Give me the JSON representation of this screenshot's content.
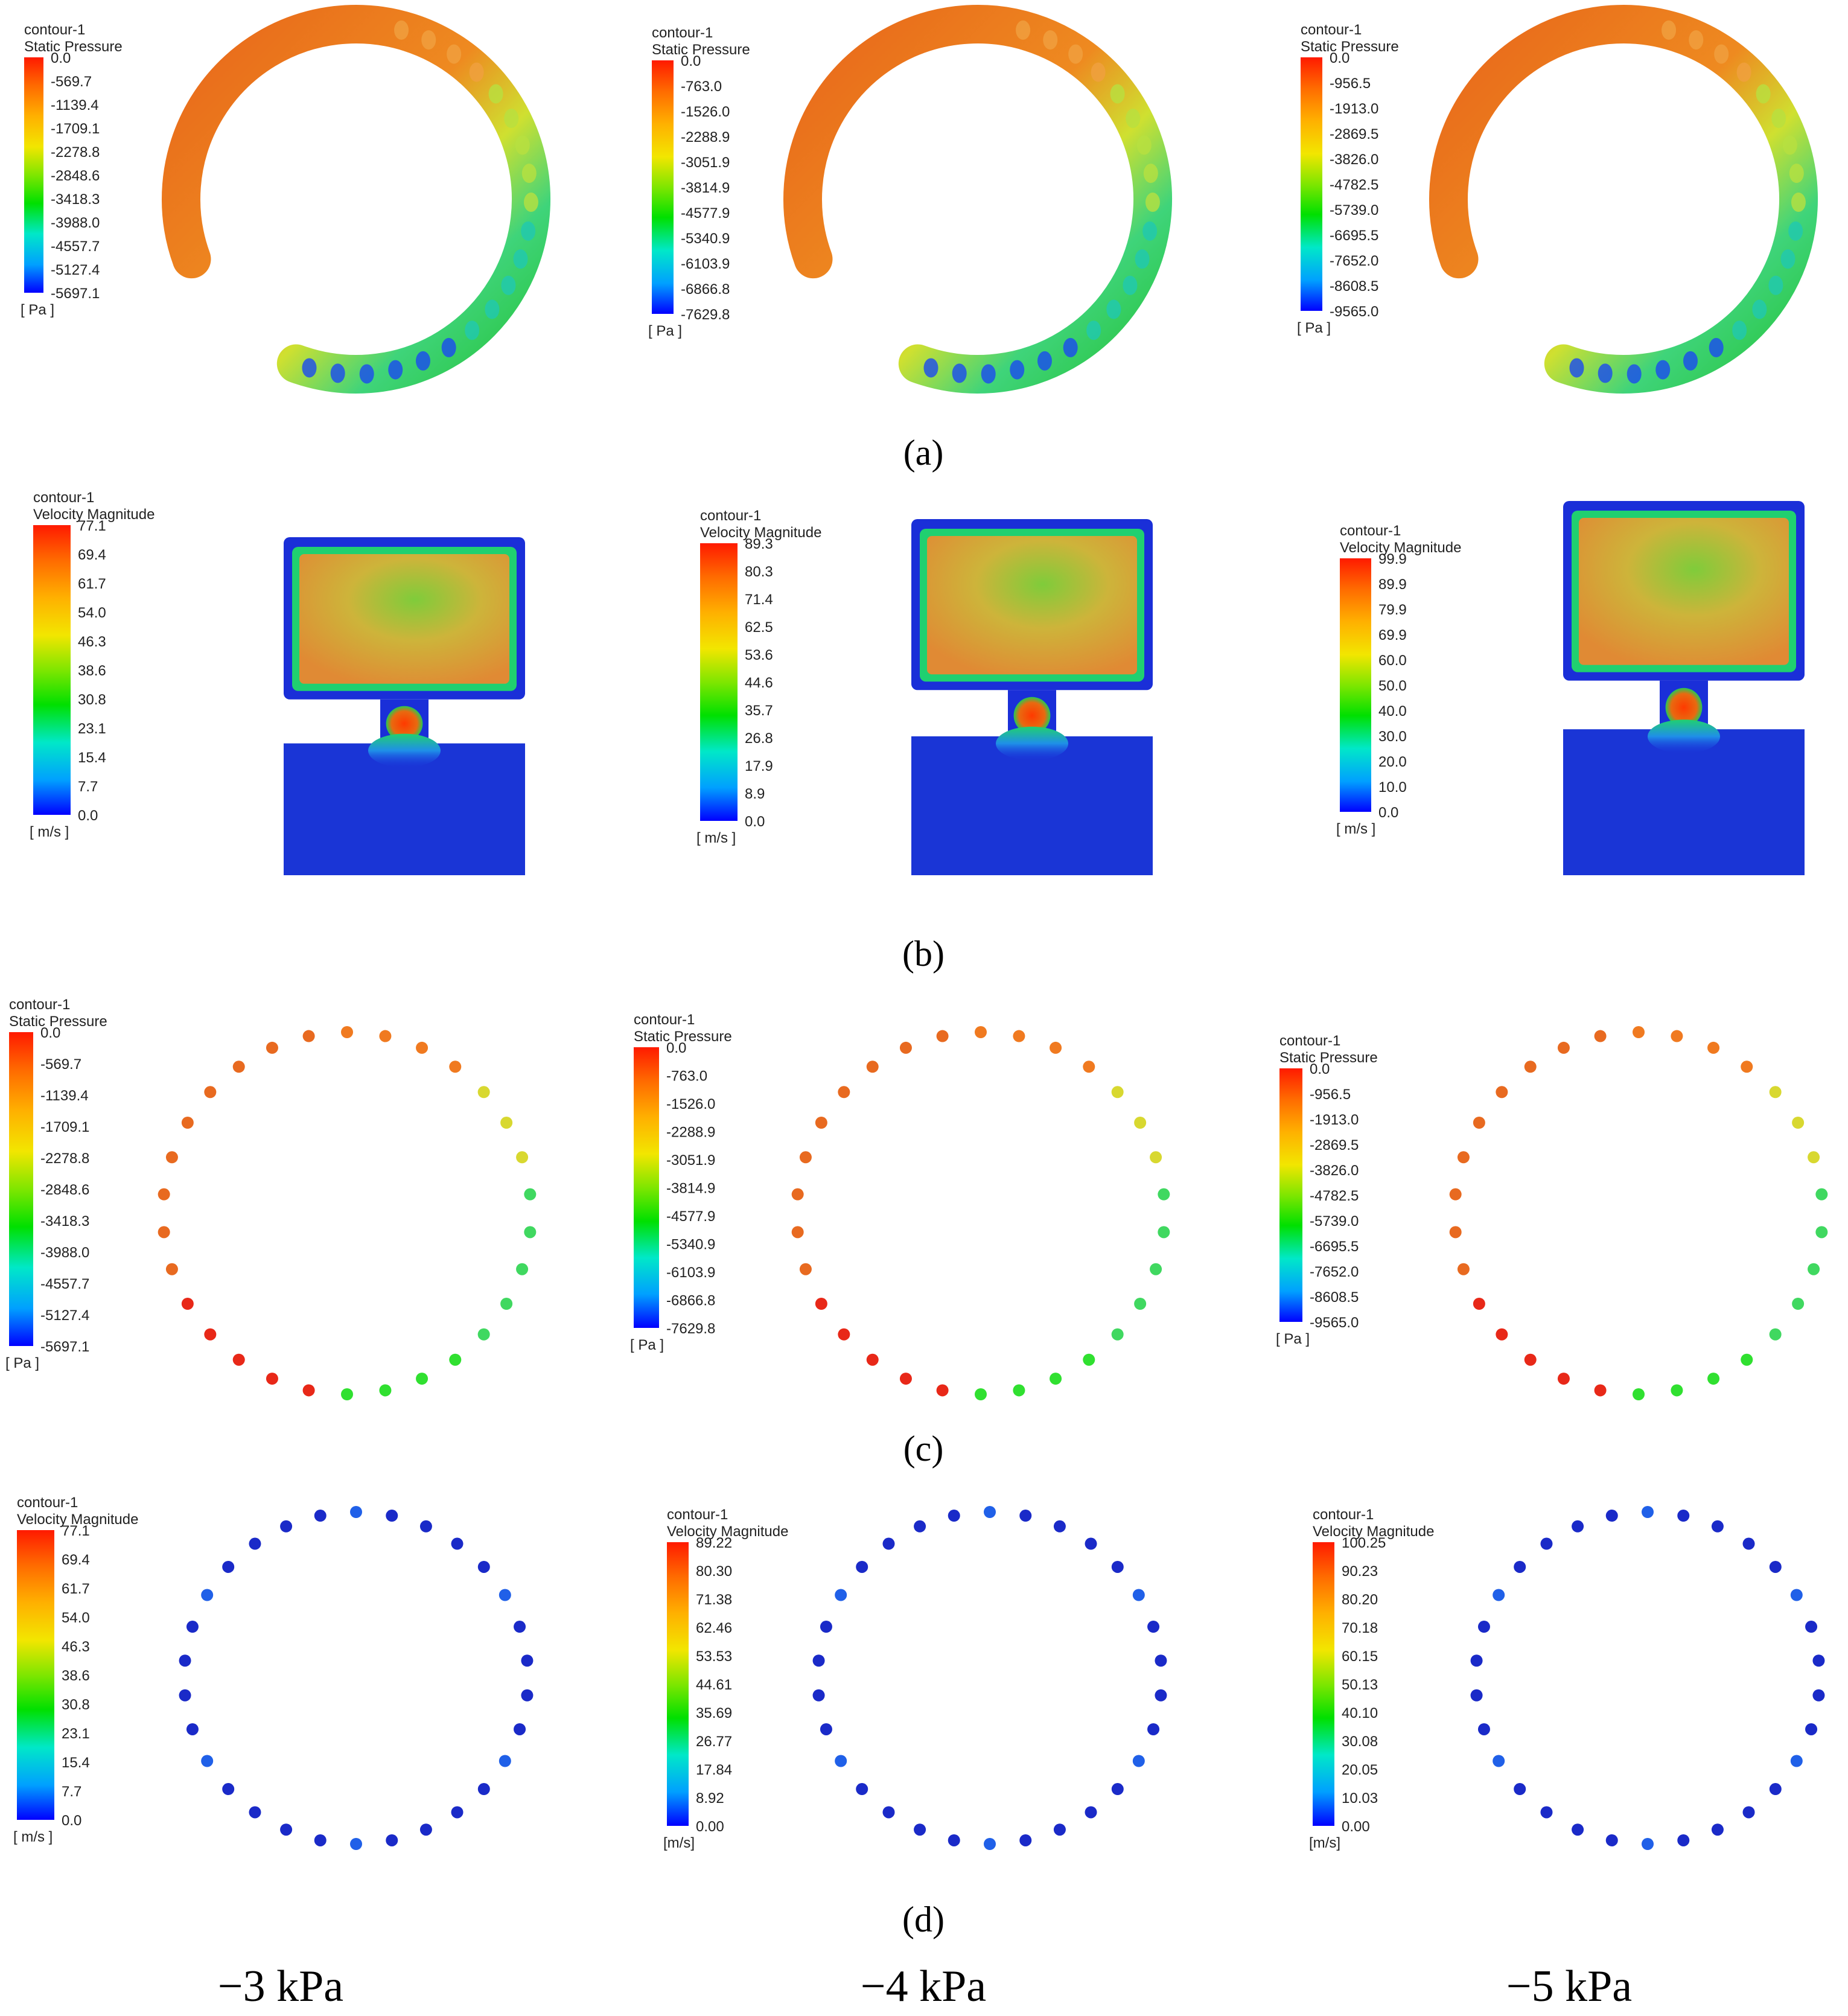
{
  "captions": [
    "(a)",
    "(b)",
    "(c)",
    "(d)"
  ],
  "column_labels": [
    "−3 kPa",
    "−4 kPa",
    "−5 kPa"
  ],
  "colormap": [
    "#0000ff",
    "#00b4ff",
    "#00e8c8",
    "#00e000",
    "#9ae600",
    "#f2e600",
    "#ffb000",
    "#ff6a00",
    "#ff1a00"
  ],
  "rows": [
    {
      "caption": "(a)",
      "kind": "static-pressure-ring",
      "panels": [
        {
          "legend": {
            "name": "contour-1",
            "variable": "Static Pressure",
            "unit": "[ Pa ]",
            "ticks": [
              "0.0",
              "-569.7",
              "-1139.4",
              "-1709.1",
              "-2278.8",
              "-2848.6",
              "-3418.3",
              "-3988.0",
              "-4557.7",
              "-5127.4",
              "-5697.1"
            ]
          }
        },
        {
          "legend": {
            "name": "contour-1",
            "variable": "Static Pressure",
            "unit": "[ Pa ]",
            "ticks": [
              "0.0",
              "-763.0",
              "-1526.0",
              "-2288.9",
              "-3051.9",
              "-3814.9",
              "-4577.9",
              "-5340.9",
              "-6103.9",
              "-6866.8",
              "-7629.8"
            ]
          }
        },
        {
          "legend": {
            "name": "contour-1",
            "variable": "Static Pressure",
            "unit": "[ Pa ]",
            "ticks": [
              "0.0",
              "-956.5",
              "-1913.0",
              "-2869.5",
              "-3826.0",
              "-4782.5",
              "-5739.0",
              "-6695.5",
              "-7652.0",
              "-8608.5",
              "-9565.0"
            ]
          }
        }
      ]
    },
    {
      "caption": "(b)",
      "kind": "velocity-cross-section",
      "panels": [
        {
          "legend": {
            "name": "contour-1",
            "variable": "Velocity Magnitude",
            "unit": "[ m/s ]",
            "ticks": [
              "77.1",
              "69.4",
              "61.7",
              "54.0",
              "46.3",
              "38.6",
              "30.8",
              "23.1",
              "15.4",
              "7.7",
              "0.0"
            ]
          }
        },
        {
          "legend": {
            "name": "contour-1",
            "variable": "Velocity Magnitude",
            "unit": "[ m/s ]",
            "ticks": [
              "89.3",
              "80.3",
              "71.4",
              "62.5",
              "53.6",
              "44.6",
              "35.7",
              "26.8",
              "17.9",
              "8.9",
              "0.0"
            ]
          }
        },
        {
          "legend": {
            "name": "contour-1",
            "variable": "Velocity Magnitude",
            "unit": "[ m/s ]",
            "ticks": [
              "99.9",
              "89.9",
              "79.9",
              "69.9",
              "60.0",
              "50.0",
              "40.0",
              "30.0",
              "20.0",
              "10.0",
              "0.0"
            ]
          }
        }
      ]
    },
    {
      "caption": "(c)",
      "kind": "static-pressure-holes",
      "panels": [
        {
          "legend": {
            "name": "contour-1",
            "variable": "Static Pressure",
            "unit": "[ Pa ]",
            "ticks": [
              "0.0",
              "-569.7",
              "-1139.4",
              "-1709.1",
              "-2278.8",
              "-2848.6",
              "-3418.3",
              "-3988.0",
              "-4557.7",
              "-5127.4",
              "-5697.1"
            ]
          }
        },
        {
          "legend": {
            "name": "contour-1",
            "variable": "Static Pressure",
            "unit": "[ Pa ]",
            "ticks": [
              "0.0",
              "-763.0",
              "-1526.0",
              "-2288.9",
              "-3051.9",
              "-3814.9",
              "-4577.9",
              "-5340.9",
              "-6103.9",
              "-6866.8",
              "-7629.8"
            ]
          }
        },
        {
          "legend": {
            "name": "contour-1",
            "variable": "Static Pressure",
            "unit": "[ Pa ]",
            "ticks": [
              "0.0",
              "-956.5",
              "-1913.0",
              "-2869.5",
              "-3826.0",
              "-4782.5",
              "-5739.0",
              "-6695.5",
              "-7652.0",
              "-8608.5",
              "-9565.0"
            ]
          }
        }
      ]
    },
    {
      "caption": "(d)",
      "kind": "velocity-holes",
      "panels": [
        {
          "legend": {
            "name": "contour-1",
            "variable": "Velocity Magnitude",
            "unit": "[ m/s ]",
            "ticks": [
              "77.1",
              "69.4",
              "61.7",
              "54.0",
              "46.3",
              "38.6",
              "30.8",
              "23.1",
              "15.4",
              "7.7",
              "0.0"
            ]
          }
        },
        {
          "legend": {
            "name": "contour-1",
            "variable": "Velocity Magnitude",
            "unit": "[m/s]",
            "ticks": [
              "89.22",
              "80.30",
              "71.38",
              "62.46",
              "53.53",
              "44.61",
              "35.69",
              "26.77",
              "17.84",
              "8.92",
              "0.00"
            ]
          }
        },
        {
          "legend": {
            "name": "contour-1",
            "variable": "Velocity Magnitude",
            "unit": "[m/s]",
            "ticks": [
              "100.25",
              "90.23",
              "80.20",
              "70.18",
              "60.15",
              "50.13",
              "40.10",
              "30.08",
              "20.05",
              "10.03",
              "0.00"
            ]
          }
        }
      ]
    }
  ]
}
